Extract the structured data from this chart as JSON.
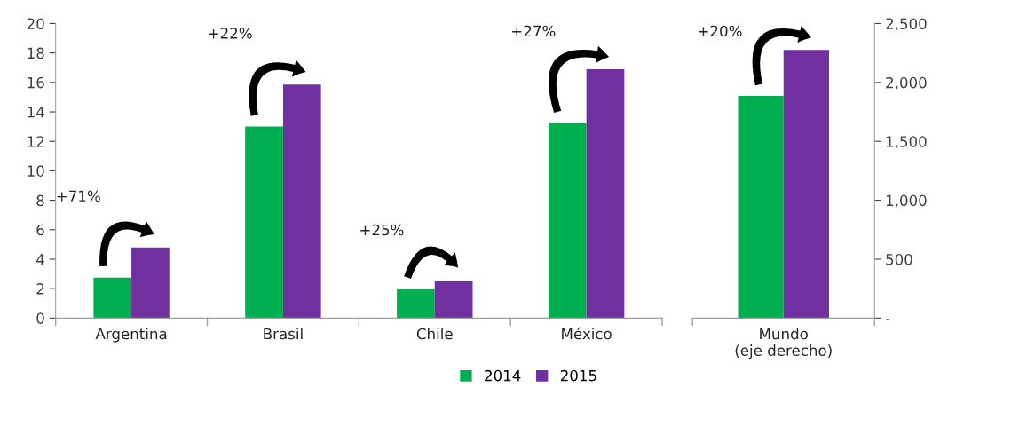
{
  "chart_data": [
    {
      "type": "bar",
      "categories": [
        "Argentina",
        "Brasil",
        "Chile",
        "México"
      ],
      "series": [
        {
          "name": "2014",
          "color": "#00b050",
          "values": [
            2.75,
            13.0,
            2.0,
            13.25
          ]
        },
        {
          "name": "2015",
          "color": "#7030a0",
          "values": [
            4.8,
            15.85,
            2.5,
            16.9
          ]
        }
      ],
      "ylim": [
        0,
        20
      ],
      "yticks": [
        0,
        2,
        4,
        6,
        8,
        10,
        12,
        14,
        16,
        18,
        20
      ],
      "grid": false,
      "legend": "bottom right",
      "annotations": [
        "+71%",
        "+22%",
        "+25%",
        "+27%"
      ]
    },
    {
      "type": "bar",
      "categories": [
        "Mundo\n(eje derecho)"
      ],
      "series": [
        {
          "color": "#00b050",
          "values": [
            1885
          ]
        },
        {
          "color": "#7030a0",
          "values": [
            2275
          ]
        }
      ],
      "ylim": [
        0,
        2500
      ],
      "yticks": [
        {
          "value": 0,
          "label": "-"
        },
        {
          "value": 500,
          "label": "500"
        },
        {
          "value": 1000,
          "label": "1,000"
        },
        {
          "value": 1500,
          "label": "1,500"
        },
        {
          "value": 2000,
          "label": "2,000"
        },
        {
          "value": 2500,
          "label": "2,500"
        }
      ],
      "grid": false,
      "annotations": [
        "+20%"
      ]
    }
  ]
}
